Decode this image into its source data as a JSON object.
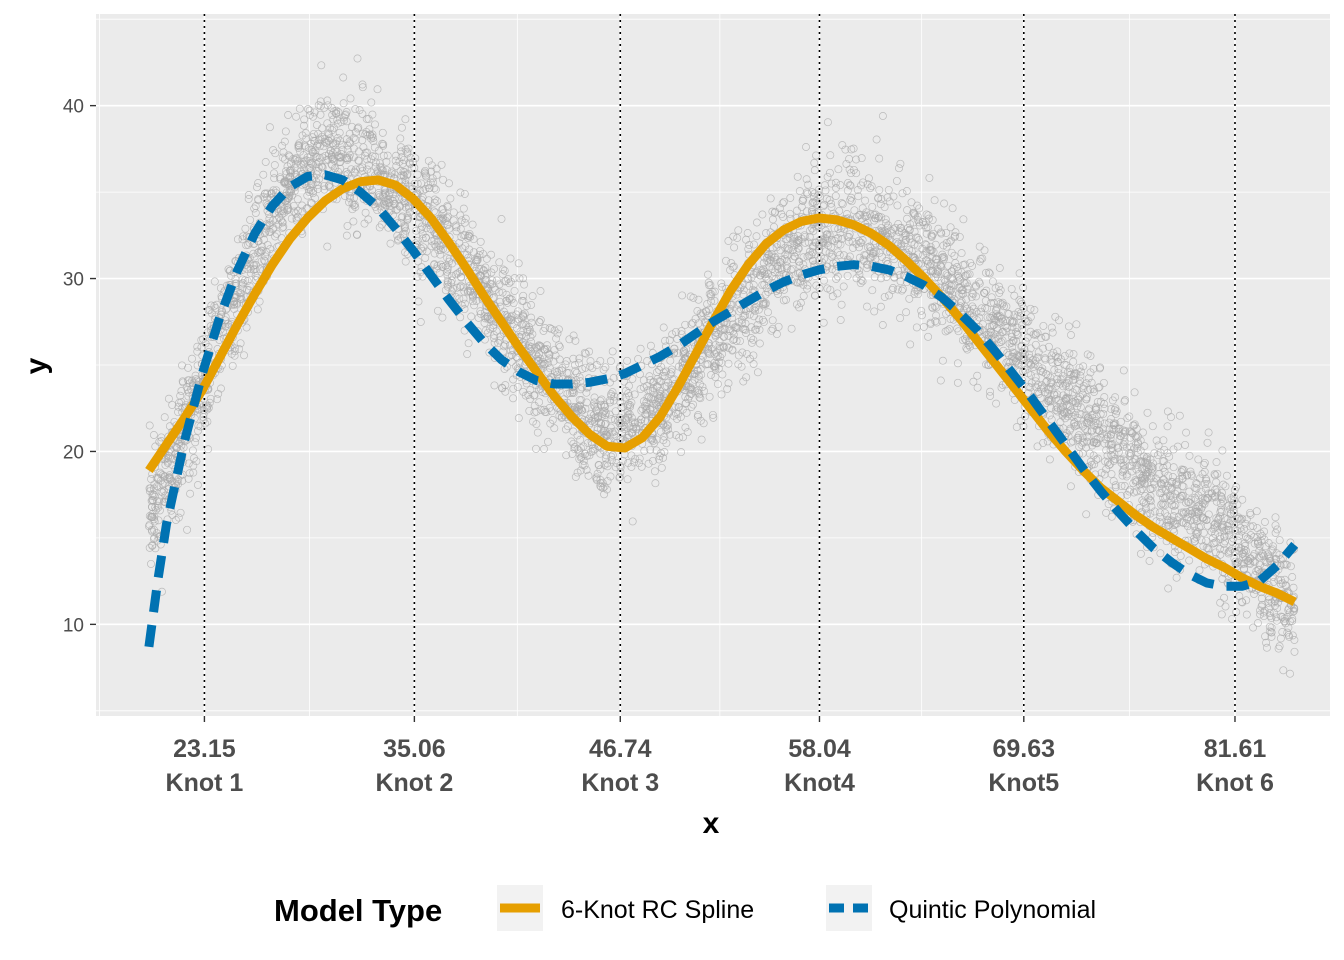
{
  "chart_data": {
    "type": "scatter",
    "xlabel": "x",
    "ylabel": "y",
    "xlim": [
      17.0,
      87.0
    ],
    "ylim": [
      4.7,
      45.3
    ],
    "y_ticks": [
      10,
      20,
      30,
      40
    ],
    "x_ticks": [
      {
        "value": 23.15,
        "label": "23.15",
        "sublabel": "Knot 1"
      },
      {
        "value": 35.06,
        "label": "35.06",
        "sublabel": "Knot 2"
      },
      {
        "value": 46.74,
        "label": "46.74",
        "sublabel": "Knot 3"
      },
      {
        "value": 58.04,
        "label": "58.04",
        "sublabel": "Knot4"
      },
      {
        "value": 69.63,
        "label": "69.63",
        "sublabel": "Knot5"
      },
      {
        "value": 81.61,
        "label": "81.61",
        "sublabel": "Knot 6"
      }
    ],
    "knot_lines": [
      23.15,
      35.06,
      46.74,
      58.04,
      69.63,
      81.61
    ],
    "grid": true,
    "legend": {
      "title": "Model Type",
      "position": "bottom",
      "items": [
        {
          "label": "6-Knot RC Spline",
          "color": "#E69F00",
          "linetype": "solid"
        },
        {
          "label": "Quintic Polynomial",
          "color": "#0072B2",
          "linetype": "dashed"
        }
      ]
    },
    "scatter": {
      "color": "#a9a9a9",
      "x_range": [
        20,
        85
      ],
      "n_points": 5000,
      "trend": [
        [
          20,
          16.5
        ],
        [
          22,
          21
        ],
        [
          24,
          26.5
        ],
        [
          26,
          31.5
        ],
        [
          28,
          35.5
        ],
        [
          30,
          37.5
        ],
        [
          32,
          37
        ],
        [
          34,
          35
        ],
        [
          36,
          33
        ],
        [
          38,
          30.5
        ],
        [
          40,
          27.5
        ],
        [
          42,
          25
        ],
        [
          44,
          22.5
        ],
        [
          46,
          21
        ],
        [
          48,
          21.5
        ],
        [
          50,
          24
        ],
        [
          52,
          26.5
        ],
        [
          54,
          29
        ],
        [
          56,
          31
        ],
        [
          58,
          32.5
        ],
        [
          60,
          33
        ],
        [
          62,
          32.5
        ],
        [
          64,
          31
        ],
        [
          66,
          29
        ],
        [
          68,
          27
        ],
        [
          70,
          25
        ],
        [
          72,
          23
        ],
        [
          74,
          21
        ],
        [
          76,
          19
        ],
        [
          78,
          17.5
        ],
        [
          80,
          16
        ],
        [
          82,
          14.5
        ],
        [
          84,
          12
        ],
        [
          85,
          10.5
        ]
      ],
      "noise_sd": 1.8
    },
    "series": [
      {
        "name": "6-Knot RC Spline",
        "color": "#E69F00",
        "x": [
          20,
          21,
          22,
          23,
          24,
          25,
          26,
          27,
          28,
          29,
          30,
          31,
          32,
          33,
          34,
          35,
          36,
          37,
          38,
          39,
          40,
          41,
          42,
          43,
          44,
          45,
          46,
          47,
          48,
          49,
          50,
          51,
          52,
          53,
          54,
          55,
          56,
          57,
          58,
          59,
          60,
          61,
          62,
          63,
          64,
          65,
          66,
          67,
          68,
          69,
          70,
          71,
          72,
          73,
          74,
          75,
          76,
          77,
          78,
          79,
          80,
          81,
          82,
          83,
          84,
          85
        ],
        "y": [
          18.9,
          20.4,
          21.9,
          23.5,
          25.4,
          27.3,
          29.1,
          30.8,
          32.3,
          33.5,
          34.5,
          35.2,
          35.6,
          35.7,
          35.4,
          34.6,
          33.5,
          32.1,
          30.6,
          29.0,
          27.5,
          26.0,
          24.6,
          23.2,
          22.0,
          21.0,
          20.3,
          20.2,
          20.8,
          22.0,
          23.7,
          25.6,
          27.5,
          29.3,
          30.8,
          32.0,
          32.8,
          33.3,
          33.5,
          33.4,
          33.1,
          32.6,
          31.9,
          31.0,
          30.0,
          28.9,
          27.7,
          26.4,
          25.1,
          23.8,
          22.5,
          21.2,
          20.0,
          18.9,
          17.9,
          17.1,
          16.3,
          15.6,
          15.0,
          14.4,
          13.8,
          13.3,
          12.7,
          12.2,
          11.8,
          11.3
        ]
      },
      {
        "name": "Quintic Polynomial",
        "color": "#0072B2",
        "x": [
          20,
          20.5,
          21,
          22,
          23,
          24,
          25,
          26,
          27,
          28,
          29,
          30,
          31,
          32,
          33,
          34,
          35,
          36,
          37,
          38,
          39,
          40,
          41,
          42,
          43,
          44,
          45,
          46,
          47,
          48,
          49,
          50,
          51,
          52,
          53,
          54,
          55,
          56,
          57,
          58,
          59,
          60,
          61,
          62,
          63,
          64,
          65,
          66,
          67,
          68,
          69,
          70,
          71,
          72,
          73,
          74,
          75,
          76,
          77,
          78,
          79,
          80,
          81,
          82,
          83,
          84,
          85
        ],
        "y": [
          8.7,
          12.5,
          15.8,
          20.5,
          24.4,
          27.7,
          30.4,
          32.6,
          34.2,
          35.3,
          35.9,
          36.0,
          35.7,
          35.0,
          34.1,
          32.9,
          31.6,
          30.2,
          28.8,
          27.5,
          26.3,
          25.3,
          24.6,
          24.1,
          23.9,
          23.9,
          24.0,
          24.2,
          24.5,
          25.0,
          25.5,
          26.1,
          26.8,
          27.5,
          28.1,
          28.7,
          29.3,
          29.8,
          30.2,
          30.5,
          30.7,
          30.8,
          30.7,
          30.5,
          30.1,
          29.6,
          28.9,
          28.0,
          27.0,
          25.8,
          24.5,
          23.2,
          21.8,
          20.4,
          19.0,
          17.7,
          16.5,
          15.4,
          14.4,
          13.6,
          12.9,
          12.4,
          12.2,
          12.2,
          12.5,
          13.4,
          14.6
        ]
      }
    ]
  }
}
